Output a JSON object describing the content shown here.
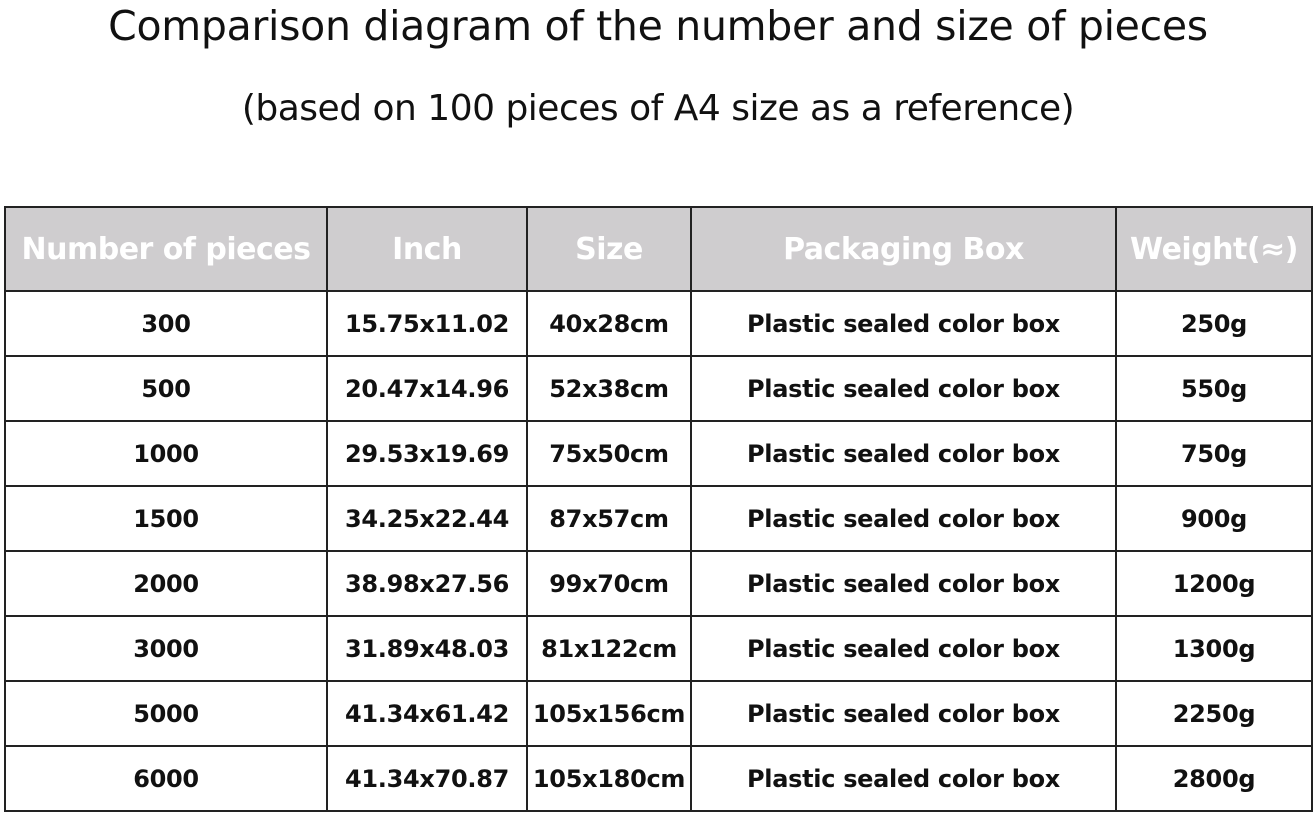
{
  "title": "Comparison diagram of the number and size of pieces",
  "subtitle": "(based on 100 pieces of A4 size as a reference)",
  "header_bg": "#cfcdcf",
  "table": {
    "headers": [
      "Number of pieces",
      "Inch",
      "Size",
      "Packaging Box",
      "Weight(≈)"
    ],
    "rows": [
      [
        "300",
        "15.75x11.02",
        "40x28cm",
        "Plastic sealed color box",
        "250g"
      ],
      [
        "500",
        "20.47x14.96",
        "52x38cm",
        "Plastic sealed color box",
        "550g"
      ],
      [
        "1000",
        "29.53x19.69",
        "75x50cm",
        "Plastic sealed color box",
        "750g"
      ],
      [
        "1500",
        "34.25x22.44",
        "87x57cm",
        "Plastic sealed color box",
        "900g"
      ],
      [
        "2000",
        "38.98x27.56",
        "99x70cm",
        "Plastic sealed color box",
        "1200g"
      ],
      [
        "3000",
        "31.89x48.03",
        "81x122cm",
        "Plastic sealed color box",
        "1300g"
      ],
      [
        "5000",
        "41.34x61.42",
        "105x156cm",
        "Plastic sealed color box",
        "2250g"
      ],
      [
        "6000",
        "41.34x70.87",
        "105x180cm",
        "Plastic sealed color box",
        "2800g"
      ]
    ]
  }
}
